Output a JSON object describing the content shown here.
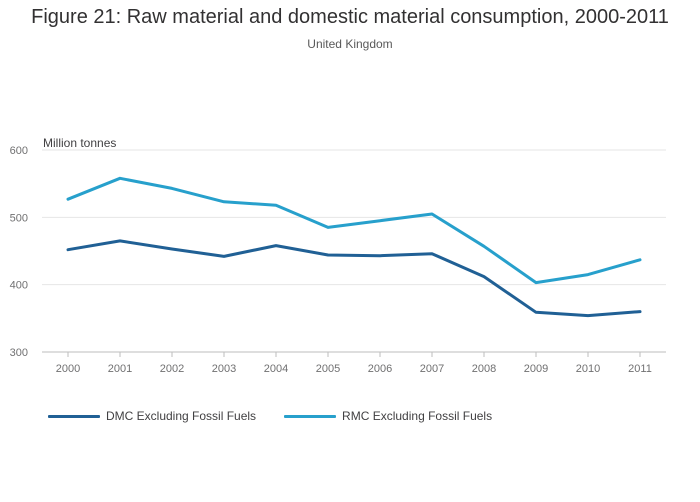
{
  "colors": {
    "dmc": "#206095",
    "rmc": "#27a0cc",
    "grid": "#e6e6e6",
    "axis": "#bebebe"
  },
  "chart_data": {
    "type": "line",
    "title": "Figure 21: Raw material and domestic material consumption, 2000-2011",
    "subtitle": "United Kingdom",
    "ylabel": "Million tonnes",
    "xlabel": "",
    "categories": [
      "2000",
      "2001",
      "2002",
      "2003",
      "2004",
      "2005",
      "2006",
      "2007",
      "2008",
      "2009",
      "2010",
      "2011"
    ],
    "ylim": [
      300,
      600
    ],
    "yticks": [
      "300",
      "400",
      "500",
      "600"
    ],
    "grid": true,
    "legend_position": "bottom-left",
    "series": [
      {
        "name": "DMC Excluding Fossil Fuels",
        "color": "#206095",
        "values": [
          452,
          465,
          453,
          442,
          458,
          444,
          443,
          446,
          412,
          359,
          354,
          360
        ]
      },
      {
        "name": "RMC Excluding Fossil Fuels",
        "color": "#27a0cc",
        "values": [
          527,
          558,
          543,
          523,
          518,
          485,
          495,
          505,
          457,
          403,
          415,
          437
        ]
      }
    ]
  }
}
